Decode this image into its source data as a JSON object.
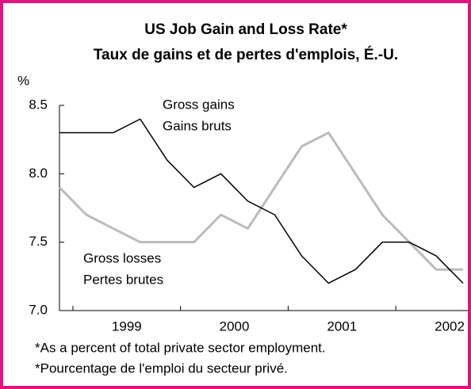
{
  "chart_data": {
    "type": "line",
    "title": "US Job Gain and Loss Rate*",
    "subtitle": "Taux de gains et de pertes d'emplois, É.-U.",
    "y_label": "%",
    "categories": [
      null,
      null,
      "1999",
      null,
      null,
      null,
      "2000",
      null,
      null,
      null,
      "2001",
      null,
      null,
      null,
      "2002",
      null
    ],
    "series": [
      {
        "name": "Gross gains",
        "name_fr": "Gains bruts",
        "color": "#000000",
        "values": [
          8.3,
          8.3,
          8.3,
          8.4,
          8.1,
          7.9,
          8.0,
          7.8,
          7.7,
          7.4,
          7.2,
          7.3,
          7.5,
          7.5,
          7.4,
          7.2
        ]
      },
      {
        "name": "Gross losses",
        "name_fr": "Pertes brutes",
        "color": "#bbbbbb",
        "values": [
          7.9,
          7.7,
          7.6,
          7.5,
          7.5,
          7.5,
          7.7,
          7.6,
          7.9,
          8.2,
          8.3,
          8.0,
          7.7,
          7.5,
          7.3,
          7.3
        ]
      }
    ],
    "ylim": [
      7.0,
      8.5
    ],
    "yticks": [
      {
        "value": 7.0,
        "label": "7.0"
      },
      7.5,
      {
        "value": 8.0,
        "label": "8.0"
      },
      8.5
    ],
    "footnotes": [
      "*As a percent of total private sector employment.",
      "*Pourcentage de l'emploi du secteur privé."
    ]
  }
}
